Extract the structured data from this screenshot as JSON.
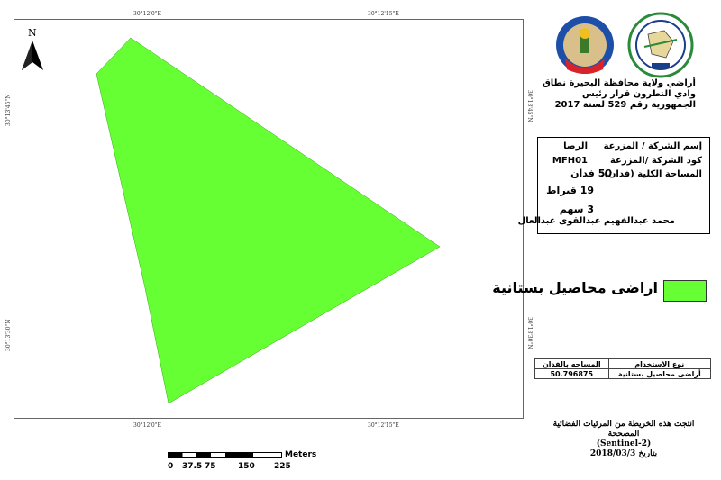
{
  "map": {
    "north_label": "N",
    "coords": {
      "top_left": "30°12'0\"E",
      "top_right": "30°12'15\"E",
      "bottom_left": "30°12'0\"E",
      "bottom_right": "30°12'15\"E",
      "left_upper": "30°13'45\"N",
      "left_lower": "30°13'30\"N",
      "right_upper": "30°13'45\"N",
      "right_lower": "30°13'30\"N"
    },
    "parcel_color": "#66ff33"
  },
  "header": {
    "line1": "أراضي ولاية محافظة البحيرة نطاق",
    "line2": "وادي النطرون قرار رئيس",
    "line3": "الجمهورية رقم 529 لسنة 2017"
  },
  "info": {
    "company_label": "إسم الشركة / المزرعة",
    "company_value": "الرضا",
    "code_label": "كود الشركة /المزرعة",
    "code_value": "MFH01",
    "area_label": "المساحة الكلية (فدان):",
    "area_value": "50 فدان",
    "qirat": "19 قيراط",
    "sahm": "3 سهم",
    "owner": "محمد عبدالفهيم عبدالقوى عبدالعال"
  },
  "legend": {
    "label": "اراضى محاصيل بستانية"
  },
  "table": {
    "header_use": "نوع الاستخدام",
    "header_area": "المساحه بالفدان",
    "row_use": "أراضى محاصيل بستانية",
    "row_area": "50.796875"
  },
  "footer": {
    "line1": "انتجت هذه الخريطة من المرئيات الفضائية المصححة",
    "line2": "(Sentinel-2)",
    "line3": "بتاريخ 2018/03/3"
  },
  "scale": {
    "unit": "Meters",
    "ticks": [
      "0",
      "37.5",
      "75",
      "150",
      "225"
    ]
  }
}
